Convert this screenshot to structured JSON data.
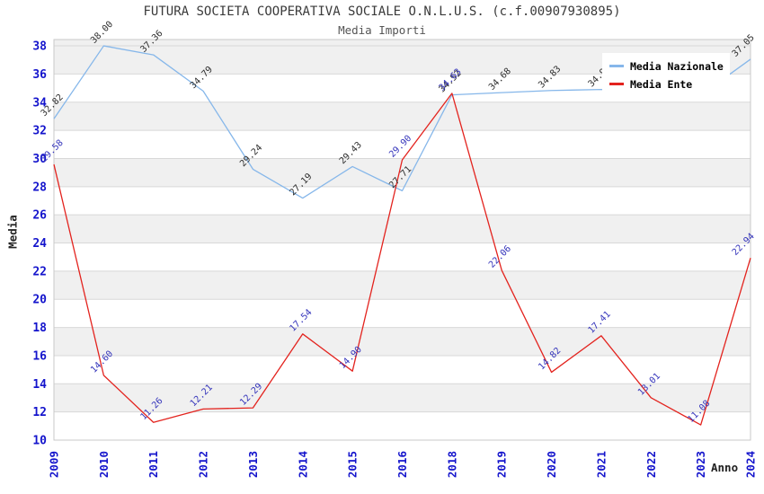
{
  "title": "FUTURA SOCIETA COOPERATIVA SOCIALE O.N.L.U.S. (c.f.00907930895)",
  "subtitle": "Media Importi",
  "chart_data": {
    "type": "line",
    "categories": [
      "2009",
      "2010",
      "2011",
      "2012",
      "2013",
      "2014",
      "2015",
      "2016",
      "2018",
      "2019",
      "2020",
      "2021",
      "2022",
      "2023",
      "2024"
    ],
    "series": [
      {
        "name": "Media Nazionale",
        "color": "#86b7ea",
        "label_color": "#2f2f2f",
        "values": [
          32.82,
          38.0,
          37.36,
          34.79,
          29.24,
          27.19,
          29.43,
          27.71,
          34.52,
          34.68,
          34.83,
          34.9,
          34.6,
          34.5,
          37.05
        ],
        "point_labels": [
          "32.82",
          "38.00",
          "37.36",
          "34.79",
          "29.24",
          "27.19",
          "29.43",
          "27.71",
          "34.52",
          "34.68",
          "34.83",
          "34.90",
          "",
          "",
          "37.05"
        ]
      },
      {
        "name": "Media Ente",
        "color": "#e3231e",
        "label_color": "#3535bb",
        "values": [
          29.58,
          14.6,
          11.26,
          12.21,
          12.29,
          17.54,
          14.9,
          29.9,
          34.63,
          22.06,
          14.82,
          17.41,
          13.01,
          11.08,
          22.94
        ],
        "point_labels": [
          "29.58",
          "14.60",
          "11.26",
          "12.21",
          "12.29",
          "17.54",
          "14.90",
          "29.90",
          "34.63",
          "22.06",
          "14.82",
          "17.41",
          "13.01",
          "11.08",
          "22.94"
        ]
      }
    ],
    "xlabel": "Anno",
    "ylabel": "Media",
    "ylim": [
      10,
      38.45
    ],
    "yticks": [
      10,
      12,
      14,
      16,
      18,
      20,
      22,
      24,
      26,
      28,
      30,
      32,
      34,
      36,
      38
    ],
    "legend_position": "top-right",
    "grid": "horizontal gridlines with alternating gray bands",
    "tick_color": "#1414cc",
    "band_color": "#f0f0f0",
    "grid_color": "#d8d8d8",
    "border_color": "#c9c9c9"
  }
}
